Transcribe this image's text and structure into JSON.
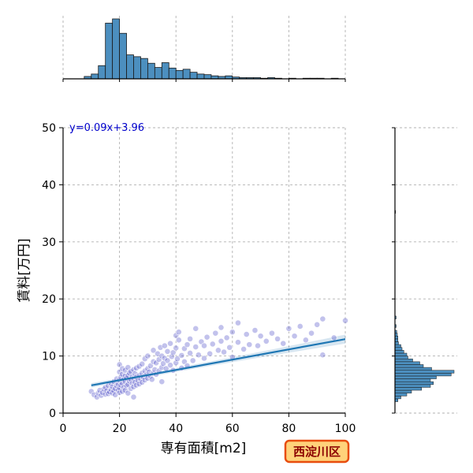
{
  "chart_data": {
    "type": "scatter",
    "title": "",
    "xlabel": "専有面積[m2]",
    "ylabel": "賃料[万円]",
    "xlim": [
      0,
      100
    ],
    "ylim": [
      0,
      50
    ],
    "xticks": [
      0,
      20,
      40,
      60,
      80,
      100
    ],
    "yticks": [
      0,
      10,
      20,
      30,
      40,
      50
    ],
    "grid": true,
    "equation": "y=0.09x+3.96",
    "badge": "西淀川区",
    "regression": {
      "slope": 0.09,
      "intercept": 3.96,
      "x_range": [
        10,
        100
      ]
    },
    "point_color": "#4f4fc8",
    "hist_color": "#4c8fbf",
    "line_color": "#1f77b4",
    "badge_fill": "#ffd27a",
    "badge_border": "#e84d0e",
    "x_hist": {
      "bin_width": 2.5,
      "bins": [
        [
          7.5,
          0.04
        ],
        [
          10,
          0.08
        ],
        [
          12.5,
          0.22
        ],
        [
          15,
          0.93
        ],
        [
          17.5,
          1.0
        ],
        [
          20,
          0.76
        ],
        [
          22.5,
          0.4
        ],
        [
          25,
          0.37
        ],
        [
          27.5,
          0.34
        ],
        [
          30,
          0.26
        ],
        [
          32.5,
          0.19
        ],
        [
          35,
          0.27
        ],
        [
          37.5,
          0.18
        ],
        [
          40,
          0.14
        ],
        [
          42.5,
          0.16
        ],
        [
          45,
          0.11
        ],
        [
          47.5,
          0.08
        ],
        [
          50,
          0.07
        ],
        [
          52.5,
          0.05
        ],
        [
          55,
          0.04
        ],
        [
          57.5,
          0.05
        ],
        [
          60,
          0.03
        ],
        [
          62.5,
          0.02
        ],
        [
          65,
          0.02
        ],
        [
          67.5,
          0.02
        ],
        [
          70,
          0.01
        ],
        [
          72.5,
          0.02
        ],
        [
          75,
          0.01
        ],
        [
          80,
          0.01
        ],
        [
          85,
          0.01
        ],
        [
          87.5,
          0.01
        ],
        [
          90,
          0.01
        ],
        [
          95,
          0.01
        ]
      ]
    },
    "y_hist": {
      "bin_width": 0.5,
      "bins": [
        [
          2.0,
          0.05
        ],
        [
          2.5,
          0.1
        ],
        [
          3.0,
          0.2
        ],
        [
          3.5,
          0.28
        ],
        [
          4.0,
          0.45
        ],
        [
          4.5,
          0.6
        ],
        [
          5.0,
          0.65
        ],
        [
          5.5,
          0.6
        ],
        [
          6.0,
          0.7
        ],
        [
          6.5,
          0.95
        ],
        [
          7.0,
          1.0
        ],
        [
          7.5,
          0.62
        ],
        [
          8.0,
          0.48
        ],
        [
          8.5,
          0.42
        ],
        [
          9.0,
          0.3
        ],
        [
          9.5,
          0.22
        ],
        [
          10.0,
          0.2
        ],
        [
          10.5,
          0.15
        ],
        [
          11.0,
          0.12
        ],
        [
          11.5,
          0.1
        ],
        [
          12.0,
          0.06
        ],
        [
          12.5,
          0.05
        ],
        [
          13.0,
          0.05
        ],
        [
          13.5,
          0.04
        ],
        [
          14.0,
          0.03
        ],
        [
          15.0,
          0.02
        ],
        [
          16.5,
          0.02
        ],
        [
          35.0,
          0.01
        ]
      ]
    },
    "points": [
      [
        10,
        3.8
      ],
      [
        11,
        3.2
      ],
      [
        12,
        2.8
      ],
      [
        12.5,
        3.5
      ],
      [
        13,
        4.0
      ],
      [
        13.5,
        3.1
      ],
      [
        14,
        3.6
      ],
      [
        14.5,
        4.2
      ],
      [
        15,
        3.3
      ],
      [
        15,
        4.5
      ],
      [
        15.5,
        3.9
      ],
      [
        16,
        3.4
      ],
      [
        16,
        4.8
      ],
      [
        16.5,
        3.7
      ],
      [
        17,
        4.1
      ],
      [
        17,
        5.2
      ],
      [
        17.5,
        3.5
      ],
      [
        17.5,
        4.6
      ],
      [
        18,
        3.9
      ],
      [
        18,
        5.5
      ],
      [
        18.5,
        4.3
      ],
      [
        18.5,
        3.2
      ],
      [
        19,
        4.8
      ],
      [
        19,
        6.0
      ],
      [
        19.5,
        4.0
      ],
      [
        19.5,
        5.1
      ],
      [
        20,
        3.6
      ],
      [
        20,
        4.4
      ],
      [
        20,
        5.8
      ],
      [
        20,
        7.2
      ],
      [
        20,
        8.5
      ],
      [
        20.5,
        4.9
      ],
      [
        20.5,
        6.3
      ],
      [
        21,
        3.8
      ],
      [
        21,
        5.2
      ],
      [
        21,
        6.8
      ],
      [
        21,
        7.8
      ],
      [
        21.5,
        4.5
      ],
      [
        21.5,
        5.9
      ],
      [
        22,
        4.0
      ],
      [
        22,
        5.5
      ],
      [
        22,
        6.5
      ],
      [
        22,
        7.5
      ],
      [
        22.5,
        4.8
      ],
      [
        22.5,
        6.1
      ],
      [
        23,
        3.5
      ],
      [
        23,
        5.0
      ],
      [
        23,
        6.6
      ],
      [
        23,
        8.0
      ],
      [
        23.5,
        5.6
      ],
      [
        23.5,
        7.0
      ],
      [
        24,
        4.3
      ],
      [
        24,
        5.9
      ],
      [
        24,
        7.3
      ],
      [
        24.5,
        5.2
      ],
      [
        24.5,
        6.4
      ],
      [
        25,
        4.6
      ],
      [
        25,
        6.0
      ],
      [
        25,
        7.6
      ],
      [
        25,
        2.8
      ],
      [
        25.5,
        5.4
      ],
      [
        25.5,
        6.9
      ],
      [
        26,
        4.9
      ],
      [
        26,
        6.3
      ],
      [
        26,
        7.9
      ],
      [
        26.5,
        5.7
      ],
      [
        27,
        5.1
      ],
      [
        27,
        6.6
      ],
      [
        27,
        8.2
      ],
      [
        27.5,
        6.0
      ],
      [
        28,
        5.4
      ],
      [
        28,
        7.0
      ],
      [
        28,
        8.6
      ],
      [
        28.5,
        6.3
      ],
      [
        29,
        5.8
      ],
      [
        29,
        7.4
      ],
      [
        29,
        9.5
      ],
      [
        29.5,
        6.7
      ],
      [
        30,
        6.1
      ],
      [
        30,
        7.8
      ],
      [
        30,
        10.0
      ],
      [
        30.5,
        7.2
      ],
      [
        31,
        6.5
      ],
      [
        31,
        8.3
      ],
      [
        31.5,
        5.9
      ],
      [
        32,
        7.0
      ],
      [
        32,
        9.0
      ],
      [
        32,
        11.0
      ],
      [
        32.5,
        7.6
      ],
      [
        33,
        6.8
      ],
      [
        33,
        8.8
      ],
      [
        33.5,
        10.4
      ],
      [
        34,
        7.4
      ],
      [
        34,
        9.4
      ],
      [
        34.5,
        11.5
      ],
      [
        35,
        8.0
      ],
      [
        35,
        10.0
      ],
      [
        35,
        5.5
      ],
      [
        35.5,
        8.7
      ],
      [
        36,
        9.6
      ],
      [
        36,
        11.8
      ],
      [
        36.5,
        7.8
      ],
      [
        37,
        9.2
      ],
      [
        37,
        10.8
      ],
      [
        38,
        8.4
      ],
      [
        38,
        12.2
      ],
      [
        38.5,
        9.9
      ],
      [
        39,
        7.5
      ],
      [
        39,
        10.6
      ],
      [
        40,
        8.8
      ],
      [
        40,
        11.4
      ],
      [
        40,
        13.6
      ],
      [
        40.5,
        9.5
      ],
      [
        41,
        12.8
      ],
      [
        41,
        14.2
      ],
      [
        42,
        10.1
      ],
      [
        42,
        7.9
      ],
      [
        43,
        11.3
      ],
      [
        43,
        9.0
      ],
      [
        44,
        12.0
      ],
      [
        44,
        8.3
      ],
      [
        45,
        10.5
      ],
      [
        45,
        13.0
      ],
      [
        46,
        9.2
      ],
      [
        47,
        11.6
      ],
      [
        47,
        14.8
      ],
      [
        48,
        10.2
      ],
      [
        49,
        12.5
      ],
      [
        50,
        9.6
      ],
      [
        50,
        11.8
      ],
      [
        51,
        13.3
      ],
      [
        52,
        10.4
      ],
      [
        53,
        12.1
      ],
      [
        54,
        14.0
      ],
      [
        55,
        11.0
      ],
      [
        56,
        15.0
      ],
      [
        56,
        12.6
      ],
      [
        57,
        10.7
      ],
      [
        58,
        13.2
      ],
      [
        59,
        11.5
      ],
      [
        60,
        14.2
      ],
      [
        60,
        9.8
      ],
      [
        62,
        15.8
      ],
      [
        62,
        12.4
      ],
      [
        64,
        11.2
      ],
      [
        65,
        13.8
      ],
      [
        66,
        12.0
      ],
      [
        68,
        14.5
      ],
      [
        69,
        11.8
      ],
      [
        70,
        13.5
      ],
      [
        72,
        12.6
      ],
      [
        74,
        14.0
      ],
      [
        76,
        13.0
      ],
      [
        78,
        12.2
      ],
      [
        80,
        14.8
      ],
      [
        82,
        13.5
      ],
      [
        84,
        15.2
      ],
      [
        86,
        12.8
      ],
      [
        88,
        14.0
      ],
      [
        90,
        15.5
      ],
      [
        92,
        10.2
      ],
      [
        92,
        16.5
      ],
      [
        96,
        13.2
      ],
      [
        100,
        16.2
      ]
    ]
  }
}
